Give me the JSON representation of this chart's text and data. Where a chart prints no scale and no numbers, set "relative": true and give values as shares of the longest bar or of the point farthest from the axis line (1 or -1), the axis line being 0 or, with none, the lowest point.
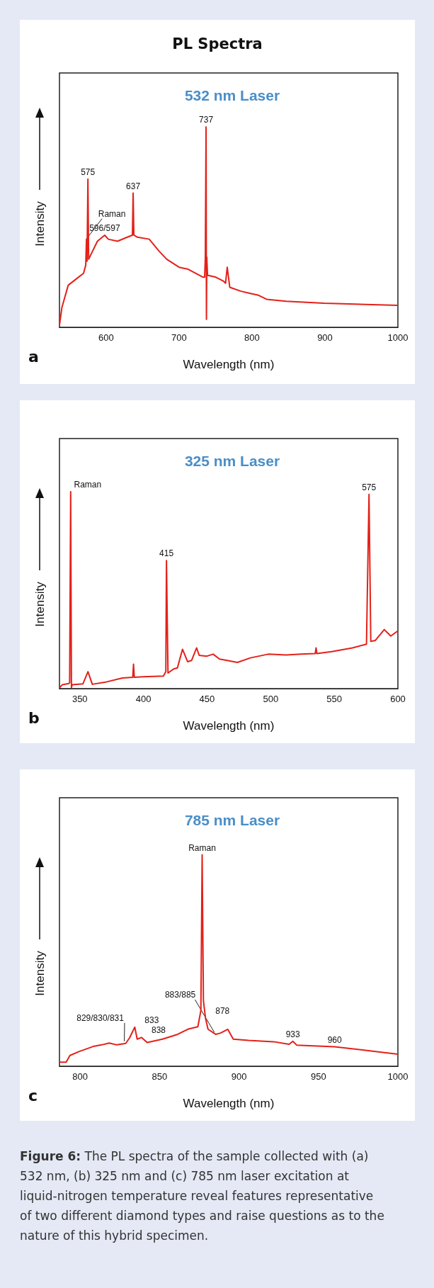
{
  "chart_data": [
    {
      "type": "line",
      "title": "PL Spectra",
      "subtitle": "532 nm Laser",
      "xlabel": "Wavelength (nm)",
      "ylabel": "Intensity",
      "relative": true,
      "xlim": [
        536,
        1000
      ],
      "xticks": [
        600,
        700,
        800,
        900,
        1000
      ],
      "series": [
        {
          "color": "#e32119",
          "x": [
            536,
            539.4,
            548,
            558.5,
            569,
            572,
            573,
            573.8,
            575,
            576,
            588,
            598,
            603,
            615.5,
            629,
            636,
            637,
            638,
            643,
            659,
            672.7,
            683,
            700,
            712.5,
            733,
            735,
            736,
            737,
            737.5,
            738,
            739,
            750.5,
            761,
            763.7,
            766,
            769.5,
            785,
            797,
            809,
            820,
            847,
            899,
            1000
          ],
          "values": [
            0.01,
            0.1,
            0.21,
            0.24,
            0.27,
            0.31,
            0.44,
            0.33,
            0.74,
            0.34,
            0.43,
            0.46,
            0.44,
            0.43,
            0.45,
            0.46,
            0.67,
            0.46,
            0.45,
            0.44,
            0.38,
            0.34,
            0.3,
            0.29,
            0.25,
            0.25,
            0.35,
            1.0,
            0.04,
            0.35,
            0.26,
            0.25,
            0.23,
            0.22,
            0.3,
            0.2,
            0.18,
            0.17,
            0.16,
            0.14,
            0.13,
            0.12,
            0.11
          ]
        }
      ],
      "annotations": [
        "a",
        {
          "text": "Raman",
          "x": 573,
          "y": 0.44
        },
        {
          "text": "575",
          "x": 575,
          "y": 0.74
        },
        {
          "text": "596/597",
          "x": 598,
          "y": 0.46
        },
        {
          "text": "637",
          "x": 637,
          "y": 0.67
        },
        {
          "text": "737",
          "x": 737,
          "y": 1.0
        }
      ]
    },
    {
      "type": "line",
      "subtitle": "325 nm Laser",
      "xlabel": "Wavelength (nm)",
      "ylabel": "Intensity",
      "relative": true,
      "xlim": [
        334,
        600
      ],
      "xticks": [
        350,
        400,
        450,
        500,
        550,
        600
      ],
      "series": [
        {
          "color": "#e32119",
          "x": [
            334.3,
            336.3,
            341.4,
            342,
            342.8,
            343.4,
            344,
            352.4,
            356.4,
            359.8,
            369.5,
            383.5,
            391.6,
            392.2,
            392.8,
            399.6,
            415.7,
            417.6,
            418.1,
            419.3,
            423.7,
            426.7,
            430.7,
            434.7,
            437.8,
            441.8,
            443.8,
            449.8,
            454.8,
            459.8,
            465.9,
            473.9,
            484,
            498,
            512,
            524,
            535,
            535.7,
            536.3,
            548,
            564.3,
            575.3,
            577.3,
            578.7,
            582.3,
            589.3,
            594.4,
            600
          ],
          "values": [
            0.006,
            0.02,
            0.026,
            0.03,
            1.0,
            0.005,
            0.02,
            0.024,
            0.086,
            0.022,
            0.032,
            0.054,
            0.058,
            0.124,
            0.058,
            0.06,
            0.064,
            0.086,
            0.65,
            0.079,
            0.1,
            0.105,
            0.2,
            0.137,
            0.143,
            0.207,
            0.169,
            0.165,
            0.175,
            0.15,
            0.143,
            0.133,
            0.156,
            0.175,
            0.171,
            0.175,
            0.178,
            0.207,
            0.178,
            0.188,
            0.207,
            0.226,
            0.987,
            0.24,
            0.245,
            0.3,
            0.267,
            0.293
          ]
        }
      ],
      "annotations": [
        "b",
        {
          "text": "Raman",
          "x": 342.8,
          "y": 1.0
        },
        {
          "text": "415",
          "x": 418.1,
          "y": 0.65
        },
        {
          "text": "575",
          "x": 577.3,
          "y": 0.987
        }
      ]
    },
    {
      "type": "line",
      "subtitle": "785 nm Laser",
      "xlabel": "Wavelength (nm)",
      "ylabel": "Intensity",
      "relative": true,
      "xlim": [
        787,
        1000
      ],
      "xticks": [
        800,
        850,
        900,
        950,
        1000
      ],
      "series": [
        {
          "color": "#e32119",
          "x": [
            787,
            791.2,
            793.6,
            799.2,
            808.8,
            813.5,
            818.3,
            823.1,
            828.7,
            831.1,
            834.4,
            835.9,
            838.7,
            842.2,
            851.8,
            861.4,
            867.7,
            874.1,
            876,
            876.8,
            877.6,
            878.9,
            880.5,
            885.3,
            888.4,
            892.9,
            896.4,
            906,
            921.9,
            931.5,
            933.9,
            936.3,
            960.2,
            977.7,
            1000
          ],
          "values": [
            0.019,
            0.019,
            0.051,
            0.069,
            0.095,
            0.101,
            0.11,
            0.101,
            0.108,
            0.134,
            0.185,
            0.128,
            0.136,
            0.112,
            0.128,
            0.151,
            0.175,
            0.187,
            0.264,
            1.0,
            0.31,
            0.228,
            0.175,
            0.151,
            0.157,
            0.175,
            0.128,
            0.122,
            0.116,
            0.104,
            0.118,
            0.1,
            0.092,
            0.077,
            0.057
          ]
        }
      ],
      "annotations": [
        "c",
        "Figure 6: The PL spectra of the sample collected with (a) 532 nm, (b) 325 nm and (c) 785 nm laser excitation at liquid-nitrogen temperature reveal features representative of two different diamond types and raise questions as to the nature of this hybrid specimen.",
        {
          "text": "Raman",
          "x": 876.8,
          "y": 1.0
        },
        {
          "text": "829/830/831",
          "x": 828.7,
          "y": 0.108
        },
        {
          "text": "833",
          "x": 834.4,
          "y": 0.185
        },
        {
          "text": "838",
          "x": 838.7,
          "y": 0.136
        },
        {
          "text": "878",
          "x": 878.9,
          "y": 0.228
        },
        {
          "text": "883/885",
          "x": 885.3,
          "y": 0.151
        },
        {
          "text": "933",
          "x": 933.9,
          "y": 0.118
        },
        {
          "text": "960",
          "x": 960.2,
          "y": 0.092
        }
      ]
    }
  ]
}
